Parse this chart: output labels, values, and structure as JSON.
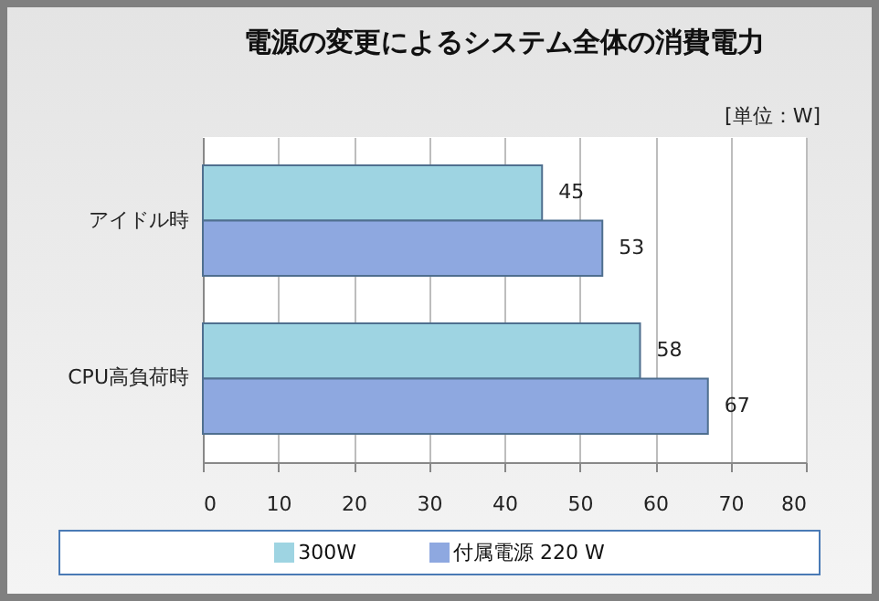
{
  "chart_data": {
    "type": "bar",
    "orientation": "horizontal",
    "title": "電源の変更によるシステム全体の消費電力",
    "annotations": [
      "[単位：W]"
    ],
    "categories": [
      "アイドル時",
      "CPU高負荷時"
    ],
    "series": [
      {
        "name": "300W",
        "color": "#9ed4e2",
        "values": [
          45,
          58
        ]
      },
      {
        "name": "付属電源 220 W",
        "color": "#8ea8e0",
        "values": [
          53,
          67
        ]
      }
    ],
    "xlim": [
      0,
      80
    ],
    "xticks": [
      0,
      10,
      20,
      30,
      40,
      50,
      60,
      70,
      80
    ],
    "grid": "x",
    "legend": "bottom",
    "data_labels": true
  }
}
